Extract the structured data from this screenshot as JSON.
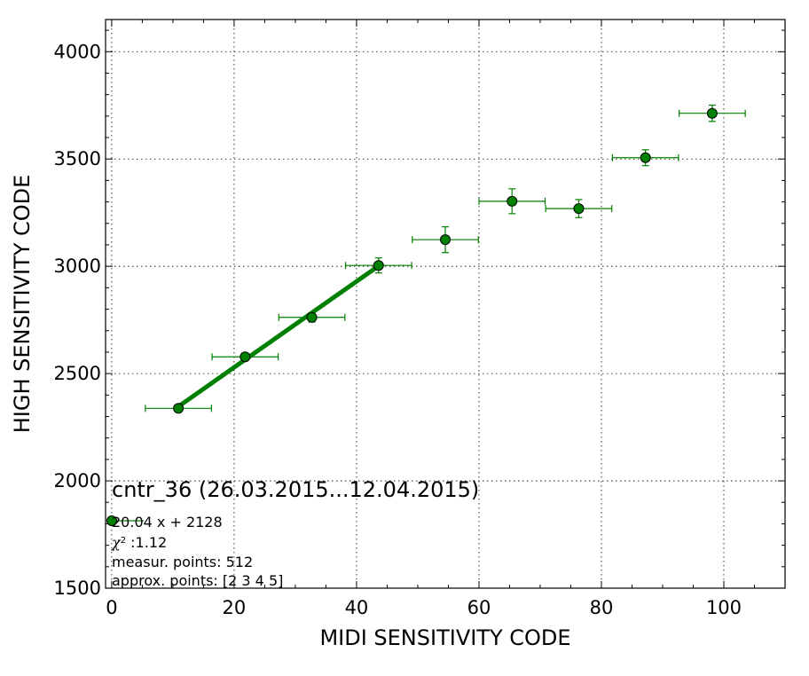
{
  "chart_data": {
    "type": "scatter",
    "title": "",
    "xlabel": "MIDI SENSITIVITY CODE",
    "ylabel": "HIGH SENSITIVITY CODE",
    "xlim": [
      -1,
      110
    ],
    "ylim": [
      1500,
      4150
    ],
    "grid": true,
    "xticks": [
      0,
      20,
      40,
      60,
      80,
      100
    ],
    "yticks": [
      1500,
      2000,
      2500,
      3000,
      3500,
      4000
    ],
    "marker_color": "#008000",
    "errorbar_color": "#008000",
    "fit_color": "#008000",
    "points": [
      {
        "x": 10.9,
        "y": 2338,
        "xerr": 5.4,
        "yerr": 12
      },
      {
        "x": 21.8,
        "y": 2578,
        "xerr": 5.4,
        "yerr": 12
      },
      {
        "x": 32.7,
        "y": 2762,
        "xerr": 5.4,
        "yerr": 22
      },
      {
        "x": 43.6,
        "y": 3004,
        "xerr": 5.4,
        "yerr": 35
      },
      {
        "x": 54.5,
        "y": 3124,
        "xerr": 5.4,
        "yerr": 60
      },
      {
        "x": 65.4,
        "y": 3303,
        "xerr": 5.4,
        "yerr": 58
      },
      {
        "x": 76.3,
        "y": 3269,
        "xerr": 5.4,
        "yerr": 42
      },
      {
        "x": 87.2,
        "y": 3506,
        "xerr": 5.4,
        "yerr": 37
      },
      {
        "x": 98.1,
        "y": 3713,
        "xerr": 5.4,
        "yerr": 38
      }
    ],
    "fit_line": {
      "slope": 20.04,
      "intercept": 2128,
      "x_range": [
        10.9,
        43.6
      ]
    },
    "annotation": {
      "title": "cntr_36 (26.03.2015...12.04.2015)",
      "legend_text": "20.04 x + 2128",
      "chi_symbol": "χ",
      "chi_sup": "2",
      "chi_text": " :1.12",
      "measur_points": "measur. points: 512",
      "approx_points": "approx. points: [2 3 4 5]"
    }
  }
}
